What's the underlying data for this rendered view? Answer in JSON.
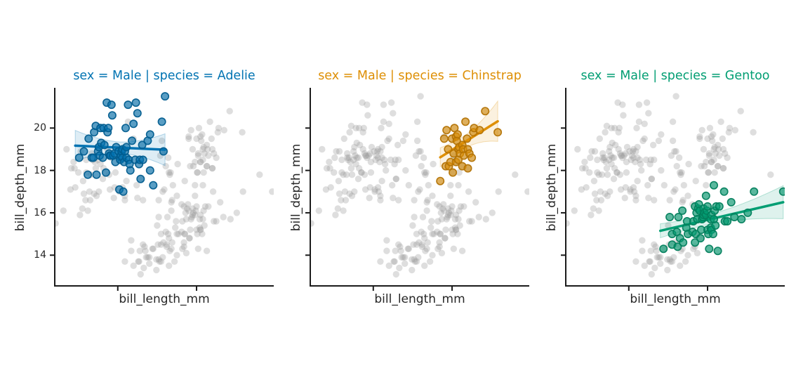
{
  "chart_data": {
    "type": "scatter",
    "title": "",
    "xlabel": "bill_length_mm",
    "ylabel": "bill_depth_mm",
    "xlim": [
      32,
      59.8
    ],
    "ylim": [
      12.55,
      21.9
    ],
    "x_ticks": [
      40,
      50
    ],
    "x_tick_labels": [],
    "y_ticks": [
      14,
      16,
      18,
      20
    ],
    "y_tick_labels": [
      "14",
      "16",
      "18",
      "20"
    ],
    "grid": false,
    "legend": "none",
    "background_point_color": "#999999",
    "spine_color": "#1b1b1b",
    "facets": [
      {
        "title": "sex = Male | species = Adelie",
        "sex": "Male",
        "species": "Adelie",
        "color": "#0173b2",
        "regression_line": {
          "x0": 34.6,
          "y0": 19.17,
          "x1": 46.0,
          "y1": 18.98
        },
        "ci_band": {
          "left": 0.72,
          "mid": 0.27,
          "right": 0.75,
          "at": 0.5
        },
        "points": [
          [
            35.1,
            18.6
          ],
          [
            35.7,
            18.9
          ],
          [
            36.2,
            17.8
          ],
          [
            36.3,
            19.5
          ],
          [
            36.7,
            18.6
          ],
          [
            36.9,
            18.6
          ],
          [
            37.0,
            19.8
          ],
          [
            37.2,
            20.1
          ],
          [
            37.3,
            17.8
          ],
          [
            37.5,
            18.9
          ],
          [
            37.6,
            19.1
          ],
          [
            37.7,
            18.7
          ],
          [
            37.8,
            20.0
          ],
          [
            37.9,
            19.3
          ],
          [
            38.1,
            18.6
          ],
          [
            38.2,
            20.0
          ],
          [
            38.3,
            19.2
          ],
          [
            38.5,
            17.9
          ],
          [
            38.6,
            21.2
          ],
          [
            38.7,
            19.8
          ],
          [
            38.8,
            20.0
          ],
          [
            38.9,
            18.8
          ],
          [
            39.0,
            18.7
          ],
          [
            39.1,
            18.7
          ],
          [
            39.2,
            21.1
          ],
          [
            39.3,
            20.6
          ],
          [
            39.4,
            18.7
          ],
          [
            39.6,
            18.8
          ],
          [
            39.7,
            18.4
          ],
          [
            39.8,
            19.1
          ],
          [
            40.1,
            18.9
          ],
          [
            40.2,
            17.1
          ],
          [
            40.3,
            18.5
          ],
          [
            40.4,
            18.7
          ],
          [
            40.5,
            18.9
          ],
          [
            40.6,
            18.6
          ],
          [
            40.6,
            19.0
          ],
          [
            40.7,
            17.0
          ],
          [
            40.8,
            18.4
          ],
          [
            40.9,
            18.9
          ],
          [
            41.0,
            20.0
          ],
          [
            41.1,
            18.6
          ],
          [
            41.1,
            19.1
          ],
          [
            41.3,
            21.1
          ],
          [
            41.4,
            18.5
          ],
          [
            41.5,
            18.3
          ],
          [
            41.6,
            18.0
          ],
          [
            41.8,
            19.4
          ],
          [
            42.0,
            20.2
          ],
          [
            42.2,
            18.5
          ],
          [
            42.3,
            21.2
          ],
          [
            42.5,
            20.7
          ],
          [
            42.7,
            18.3
          ],
          [
            42.8,
            18.5
          ],
          [
            42.9,
            17.6
          ],
          [
            43.1,
            19.2
          ],
          [
            43.2,
            18.5
          ],
          [
            43.8,
            19.4
          ],
          [
            44.1,
            18.0
          ],
          [
            44.1,
            19.7
          ],
          [
            44.5,
            17.3
          ],
          [
            45.6,
            20.3
          ],
          [
            45.8,
            18.9
          ],
          [
            46.0,
            21.5
          ]
        ]
      },
      {
        "title": "sex = Male | species = Chinstrap",
        "sex": "Male",
        "species": "Chinstrap",
        "color": "#de8f05",
        "regression_line": {
          "x0": 48.5,
          "y0": 18.62,
          "x1": 55.8,
          "y1": 20.32
        },
        "ci_band": {
          "left": 0.45,
          "mid": 0.3,
          "right": 0.95,
          "at": 0.4
        },
        "points": [
          [
            48.5,
            17.5
          ],
          [
            49.0,
            19.5
          ],
          [
            49.2,
            18.2
          ],
          [
            49.3,
            19.9
          ],
          [
            49.5,
            19.0
          ],
          [
            49.6,
            18.2
          ],
          [
            49.8,
            18.4
          ],
          [
            50.0,
            19.5
          ],
          [
            50.1,
            17.9
          ],
          [
            50.2,
            18.8
          ],
          [
            50.3,
            20.0
          ],
          [
            50.5,
            18.4
          ],
          [
            50.5,
            19.6
          ],
          [
            50.6,
            19.4
          ],
          [
            50.7,
            19.7
          ],
          [
            50.8,
            18.5
          ],
          [
            50.8,
            19.0
          ],
          [
            50.9,
            19.1
          ],
          [
            51.0,
            18.8
          ],
          [
            51.3,
            19.2
          ],
          [
            51.3,
            18.2
          ],
          [
            51.4,
            19.0
          ],
          [
            51.5,
            18.7
          ],
          [
            51.7,
            20.3
          ],
          [
            51.9,
            19.5
          ],
          [
            52.0,
            18.1
          ],
          [
            52.0,
            19.0
          ],
          [
            52.2,
            18.8
          ],
          [
            52.5,
            18.6
          ],
          [
            52.7,
            19.8
          ],
          [
            52.8,
            20.0
          ],
          [
            53.5,
            19.9
          ],
          [
            54.2,
            20.8
          ],
          [
            55.8,
            19.8
          ]
        ]
      },
      {
        "title": "sex = Male | species = Gentoo",
        "sex": "Male",
        "species": "Gentoo",
        "color": "#029e73",
        "regression_line": {
          "x0": 44.0,
          "y0": 15.15,
          "x1": 59.6,
          "y1": 16.5
        },
        "ci_band": {
          "left": 0.33,
          "mid": 0.22,
          "right": 0.78,
          "at": 0.35
        },
        "points": [
          [
            44.4,
            14.3
          ],
          [
            45.2,
            15.8
          ],
          [
            45.5,
            15.0
          ],
          [
            45.5,
            14.5
          ],
          [
            46.1,
            15.1
          ],
          [
            46.2,
            14.4
          ],
          [
            46.3,
            15.8
          ],
          [
            46.5,
            14.8
          ],
          [
            46.8,
            16.1
          ],
          [
            46.9,
            14.6
          ],
          [
            47.3,
            15.3
          ],
          [
            47.4,
            15.6
          ],
          [
            47.5,
            15.0
          ],
          [
            48.1,
            15.1
          ],
          [
            48.2,
            15.6
          ],
          [
            48.4,
            14.6
          ],
          [
            48.4,
            16.3
          ],
          [
            48.5,
            15.0
          ],
          [
            48.6,
            16.0
          ],
          [
            48.7,
            15.7
          ],
          [
            48.8,
            16.2
          ],
          [
            48.9,
            16.4
          ],
          [
            49.0,
            16.1
          ],
          [
            49.1,
            14.8
          ],
          [
            49.2,
            15.2
          ],
          [
            49.3,
            15.7
          ],
          [
            49.4,
            15.8
          ],
          [
            49.5,
            16.2
          ],
          [
            49.5,
            15.9
          ],
          [
            49.6,
            16.0
          ],
          [
            49.8,
            16.8
          ],
          [
            49.8,
            15.9
          ],
          [
            49.9,
            16.1
          ],
          [
            50.0,
            15.2
          ],
          [
            50.0,
            16.3
          ],
          [
            50.1,
            15.0
          ],
          [
            50.2,
            14.3
          ],
          [
            50.4,
            15.7
          ],
          [
            50.4,
            15.3
          ],
          [
            50.5,
            15.9
          ],
          [
            50.5,
            15.2
          ],
          [
            50.7,
            15.0
          ],
          [
            50.8,
            15.7
          ],
          [
            50.8,
            17.3
          ],
          [
            50.9,
            16.1
          ],
          [
            51.0,
            15.4
          ],
          [
            51.1,
            16.3
          ],
          [
            51.3,
            14.2
          ],
          [
            51.5,
            16.3
          ],
          [
            52.1,
            17.0
          ],
          [
            52.2,
            15.6
          ],
          [
            52.5,
            15.6
          ],
          [
            53.0,
            16.5
          ],
          [
            53.4,
            15.8
          ],
          [
            54.3,
            15.7
          ],
          [
            55.1,
            16.0
          ],
          [
            55.9,
            17.0
          ],
          [
            59.6,
            17.0
          ]
        ]
      }
    ],
    "background_points": [
      [
        32.1,
        15.5
      ],
      [
        33.1,
        16.1
      ],
      [
        33.5,
        19.0
      ],
      [
        34.0,
        17.1
      ],
      [
        34.1,
        18.1
      ],
      [
        34.4,
        18.4
      ],
      [
        34.5,
        18.1
      ],
      [
        34.6,
        17.2
      ],
      [
        35.0,
        17.9
      ],
      [
        35.2,
        15.9
      ],
      [
        35.3,
        18.9
      ],
      [
        35.5,
        16.2
      ],
      [
        35.6,
        17.5
      ],
      [
        35.7,
        16.9
      ],
      [
        35.9,
        16.6
      ],
      [
        36.0,
        17.9
      ],
      [
        36.0,
        18.5
      ],
      [
        36.2,
        16.1
      ],
      [
        36.4,
        17.0
      ],
      [
        36.5,
        16.6
      ],
      [
        36.6,
        17.8
      ],
      [
        36.7,
        18.8
      ],
      [
        36.8,
        18.5
      ],
      [
        37.0,
        16.9
      ],
      [
        37.1,
        18.4
      ],
      [
        37.2,
        18.1
      ],
      [
        37.3,
        16.8
      ],
      [
        37.5,
        18.5
      ],
      [
        37.6,
        17.0
      ],
      [
        37.8,
        18.3
      ],
      [
        37.9,
        18.6
      ],
      [
        38.1,
        17.6
      ],
      [
        38.2,
        18.1
      ],
      [
        38.5,
        17.9
      ],
      [
        38.7,
        19.0
      ],
      [
        38.9,
        17.8
      ],
      [
        39.0,
        17.1
      ],
      [
        39.2,
        18.6
      ],
      [
        39.5,
        16.7
      ],
      [
        39.6,
        17.2
      ],
      [
        39.7,
        17.9
      ],
      [
        40.2,
        17.0
      ],
      [
        40.6,
        17.2
      ],
      [
        40.9,
        16.8
      ],
      [
        41.1,
        17.5
      ],
      [
        41.3,
        20.3
      ],
      [
        42.0,
        19.5
      ],
      [
        42.9,
        17.6
      ],
      [
        40.9,
        16.6
      ],
      [
        42.4,
        17.3
      ],
      [
        42.5,
        16.7
      ],
      [
        43.2,
        16.6
      ],
      [
        45.2,
        16.6
      ],
      [
        45.4,
        18.7
      ],
      [
        45.6,
        19.4
      ],
      [
        45.7,
        17.0
      ],
      [
        45.9,
        17.1
      ],
      [
        46.0,
        18.9
      ],
      [
        46.1,
        18.2
      ],
      [
        46.4,
        18.6
      ],
      [
        46.5,
        17.9
      ],
      [
        46.6,
        17.8
      ],
      [
        46.7,
        17.9
      ],
      [
        46.8,
        16.5
      ],
      [
        46.9,
        16.6
      ],
      [
        47.0,
        17.3
      ],
      [
        47.5,
        16.8
      ],
      [
        47.6,
        18.3
      ],
      [
        48.1,
        16.4
      ],
      [
        49.0,
        19.6
      ],
      [
        49.8,
        17.3
      ],
      [
        50.1,
        17.9
      ],
      [
        50.2,
        18.7
      ],
      [
        50.5,
        18.4
      ],
      [
        50.9,
        17.9
      ],
      [
        51.3,
        18.2
      ],
      [
        52.0,
        18.1
      ],
      [
        58.0,
        17.8
      ],
      [
        40.9,
        13.7
      ],
      [
        41.7,
        14.7
      ],
      [
        41.7,
        14.2
      ],
      [
        42.0,
        13.5
      ],
      [
        42.6,
        13.7
      ],
      [
        42.7,
        13.7
      ],
      [
        42.8,
        14.2
      ],
      [
        42.9,
        13.1
      ],
      [
        43.2,
        14.5
      ],
      [
        43.3,
        13.4
      ],
      [
        43.4,
        14.4
      ],
      [
        43.5,
        14.2
      ],
      [
        43.6,
        13.9
      ],
      [
        43.8,
        13.9
      ],
      [
        44.0,
        13.6
      ],
      [
        44.0,
        13.9
      ],
      [
        44.5,
        14.3
      ],
      [
        44.9,
        13.3
      ],
      [
        44.9,
        13.8
      ],
      [
        45.0,
        15.4
      ],
      [
        45.1,
        14.5
      ],
      [
        45.2,
        13.8
      ],
      [
        45.3,
        13.7
      ],
      [
        45.5,
        13.7
      ],
      [
        45.7,
        13.9
      ],
      [
        45.8,
        14.6
      ],
      [
        46.2,
        14.5
      ],
      [
        46.4,
        15.0
      ],
      [
        46.5,
        13.5
      ],
      [
        46.6,
        14.2
      ],
      [
        46.8,
        14.3
      ],
      [
        47.2,
        13.7
      ],
      [
        47.5,
        14.0
      ],
      [
        47.7,
        15.0
      ],
      [
        48.2,
        14.3
      ],
      [
        48.4,
        14.4
      ],
      [
        48.5,
        15.0
      ],
      [
        48.7,
        14.1
      ],
      [
        49.1,
        14.8
      ],
      [
        50.5,
        15.2
      ]
    ]
  }
}
